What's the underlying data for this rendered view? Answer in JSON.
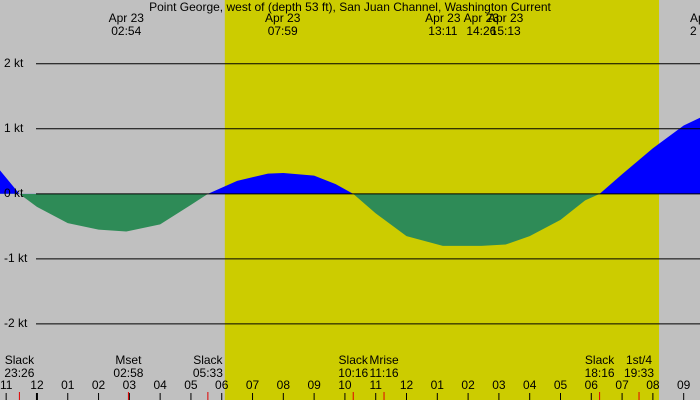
{
  "chart_data": {
    "type": "area",
    "title": "Point George, west of (depth 53 ft), San Juan Channel, Washington Current",
    "x": [
      -1.2,
      -0.57,
      0,
      1,
      2,
      2.9,
      4,
      5,
      5.55,
      6.5,
      7.5,
      8,
      9,
      9.7,
      10.27,
      11,
      12,
      13.18,
      14.43,
      15.22,
      16,
      17,
      17.8,
      18.27,
      19,
      20,
      21,
      21.53
    ],
    "values": [
      0.36,
      0,
      -0.2,
      -0.45,
      -0.55,
      -0.58,
      -0.47,
      -0.17,
      0,
      0.2,
      0.31,
      0.32,
      0.28,
      0.15,
      0,
      -0.3,
      -0.65,
      -0.8,
      -0.8,
      -0.78,
      -0.65,
      -0.4,
      -0.1,
      0,
      0.3,
      0.7,
      1.05,
      1.17
    ],
    "flood_color": "#0000ff",
    "ebb_color": "#2e8b57",
    "background": "#c0c0c0",
    "daylight_color": "#cccc00",
    "daylight": [
      6.1,
      20.2
    ],
    "xlim": [
      -1.2,
      21.53
    ],
    "ylim": [
      -3.17,
      2.98
    ],
    "yticks": [
      {
        "value": 2,
        "label": "2 kt"
      },
      {
        "value": 1,
        "label": "1 kt"
      },
      {
        "value": 0,
        "label": "0 kt"
      },
      {
        "value": -1,
        "label": "-1 kt"
      },
      {
        "value": -2,
        "label": "-2 kt"
      }
    ],
    "xticks": [
      {
        "value": -1,
        "label": "11"
      },
      {
        "value": 0,
        "label": "12"
      },
      {
        "value": 1,
        "label": "01"
      },
      {
        "value": 2,
        "label": "02"
      },
      {
        "value": 3,
        "label": "03"
      },
      {
        "value": 4,
        "label": "04"
      },
      {
        "value": 5,
        "label": "05"
      },
      {
        "value": 6,
        "label": "06"
      },
      {
        "value": 7,
        "label": "07"
      },
      {
        "value": 8,
        "label": "08"
      },
      {
        "value": 9,
        "label": "09"
      },
      {
        "value": 10,
        "label": "10"
      },
      {
        "value": 11,
        "label": "11"
      },
      {
        "value": 12,
        "label": "12"
      },
      {
        "value": 13,
        "label": "01"
      },
      {
        "value": 14,
        "label": "02"
      },
      {
        "value": 15,
        "label": "03"
      },
      {
        "value": 16,
        "label": "04"
      },
      {
        "value": 17,
        "label": "05"
      },
      {
        "value": 18,
        "label": "06"
      },
      {
        "value": 19,
        "label": "07"
      },
      {
        "value": 20,
        "label": "08"
      },
      {
        "value": 21,
        "label": "09"
      }
    ],
    "peaks": [
      {
        "x": 2.9,
        "date": "Apr 23",
        "time": "02:54"
      },
      {
        "x": 7.98,
        "date": "Apr 23",
        "time": "07:59"
      },
      {
        "x": 13.18,
        "date": "Apr 23",
        "time": "13:11"
      },
      {
        "x": 14.43,
        "date": "Apr 23",
        "time": "14:26"
      },
      {
        "x": 15.22,
        "date": "Apr 23",
        "time": "15:13"
      },
      {
        "x": 21.53,
        "date": "Ap",
        "time": "2"
      }
    ],
    "events": [
      {
        "x": -0.57,
        "label": "Slack",
        "time": "23:26"
      },
      {
        "x": 2.97,
        "label": "Mset",
        "time": "02:58"
      },
      {
        "x": 5.55,
        "label": "Slack",
        "time": "05:33"
      },
      {
        "x": 10.27,
        "label": "Slack",
        "time": "10:16"
      },
      {
        "x": 11.27,
        "label": "Mrise",
        "time": "11:16"
      },
      {
        "x": 18.27,
        "label": "Slack",
        "time": "18:16"
      },
      {
        "x": 19.55,
        "label": "1st/4",
        "time": "19:33"
      }
    ]
  }
}
